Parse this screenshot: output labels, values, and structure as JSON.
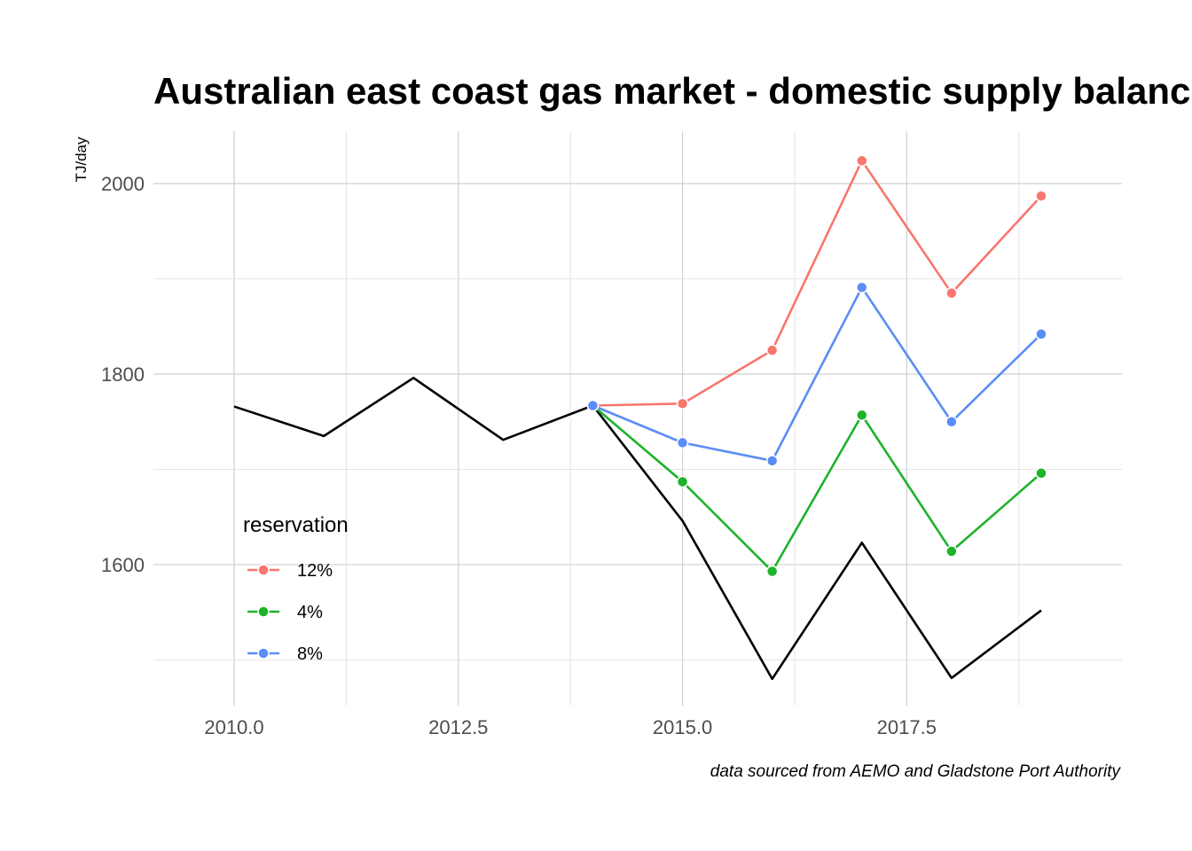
{
  "chart_data": {
    "type": "line",
    "title": "Australian east coast gas market - domestic supply balance",
    "ylabel": "TJ/day",
    "xlabel": "",
    "caption": "data sourced from AEMO and Gladstone Port Authority",
    "xlim": [
      2009.1,
      2019.9
    ],
    "ylim": [
      1452,
      2055
    ],
    "x_ticks": [
      2010.0,
      2012.5,
      2015.0,
      2017.5
    ],
    "x_tick_labels": [
      "2010.0",
      "2012.5",
      "2015.0",
      "2017.5"
    ],
    "y_ticks": [
      1600,
      1800,
      2000
    ],
    "y_tick_labels": [
      "1600",
      "1800",
      "2000"
    ],
    "grid": true,
    "legend": {
      "title": "reservation",
      "placement": "bottom-left",
      "entries": [
        "12%",
        "4%",
        "8%"
      ]
    },
    "baseline": {
      "color": "#000000",
      "x": [
        2010,
        2011,
        2012,
        2013,
        2014,
        2015,
        2016,
        2017,
        2018,
        2019
      ],
      "values": [
        1766,
        1735,
        1796,
        1731,
        1767,
        1646,
        1480,
        1623,
        1481,
        1552
      ]
    },
    "series": [
      {
        "name": "12%",
        "color": "#F8766D",
        "x": [
          2014,
          2015,
          2016,
          2017,
          2018,
          2019
        ],
        "values": [
          1767,
          1769,
          1825,
          2024,
          1885,
          1987
        ]
      },
      {
        "name": "4%",
        "color": "#1DB32A",
        "x": [
          2014,
          2015,
          2016,
          2017,
          2018,
          2019
        ],
        "values": [
          1767,
          1687,
          1593,
          1757,
          1614,
          1696
        ]
      },
      {
        "name": "8%",
        "color": "#5B8DF6",
        "x": [
          2014,
          2015,
          2016,
          2017,
          2018,
          2019
        ],
        "values": [
          1767,
          1728,
          1709,
          1891,
          1750,
          1842
        ]
      }
    ]
  }
}
